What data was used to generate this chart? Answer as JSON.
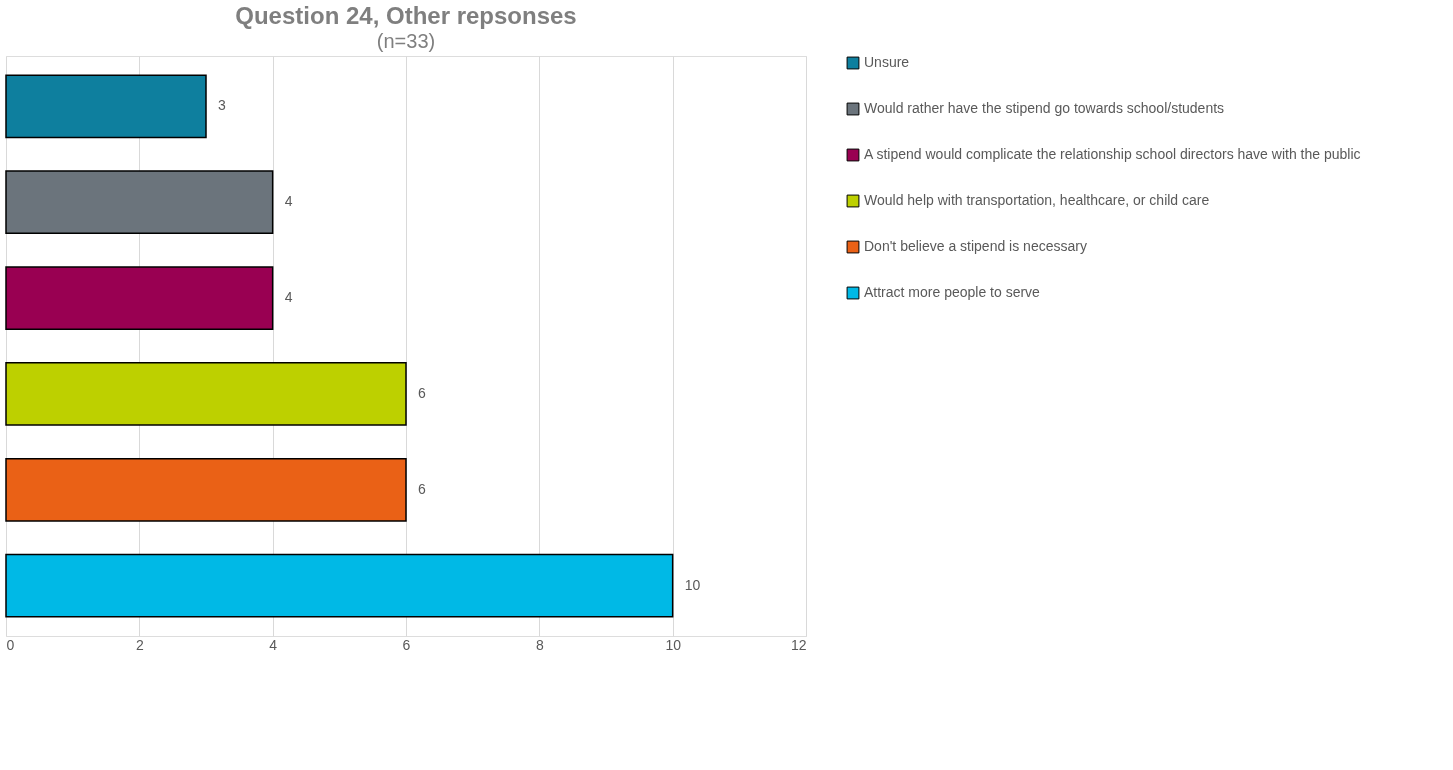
{
  "chart_data": {
    "type": "bar",
    "orientation": "horizontal",
    "title": "Question 24, Other repsonses",
    "subtitle": "(n=33)",
    "categories": [
      null
    ],
    "series": [
      {
        "name": "Unsure",
        "color": "#0e7f9e",
        "values": [
          3
        ]
      },
      {
        "name": "Would rather have the stipend go towards school/students",
        "color": "#6b747c",
        "values": [
          4
        ]
      },
      {
        "name": "A stipend would complicate the relationship school directors have with the public",
        "color": "#990052",
        "values": [
          4
        ]
      },
      {
        "name": "Would help with transportation, healthcare, or child care",
        "color": "#bdd000",
        "values": [
          6
        ]
      },
      {
        "name": "Don't believe a stipend is necessary",
        "color": "#ea6116",
        "values": [
          6
        ]
      },
      {
        "name": "Attract more people to serve",
        "color": "#00b9e6",
        "values": [
          10
        ]
      }
    ],
    "xlim": [
      0,
      12
    ],
    "xticks": [
      0,
      2,
      4,
      6,
      8,
      10,
      12
    ],
    "grid": "x",
    "legend": "right",
    "data_labels": true,
    "tick_labels": "x"
  }
}
